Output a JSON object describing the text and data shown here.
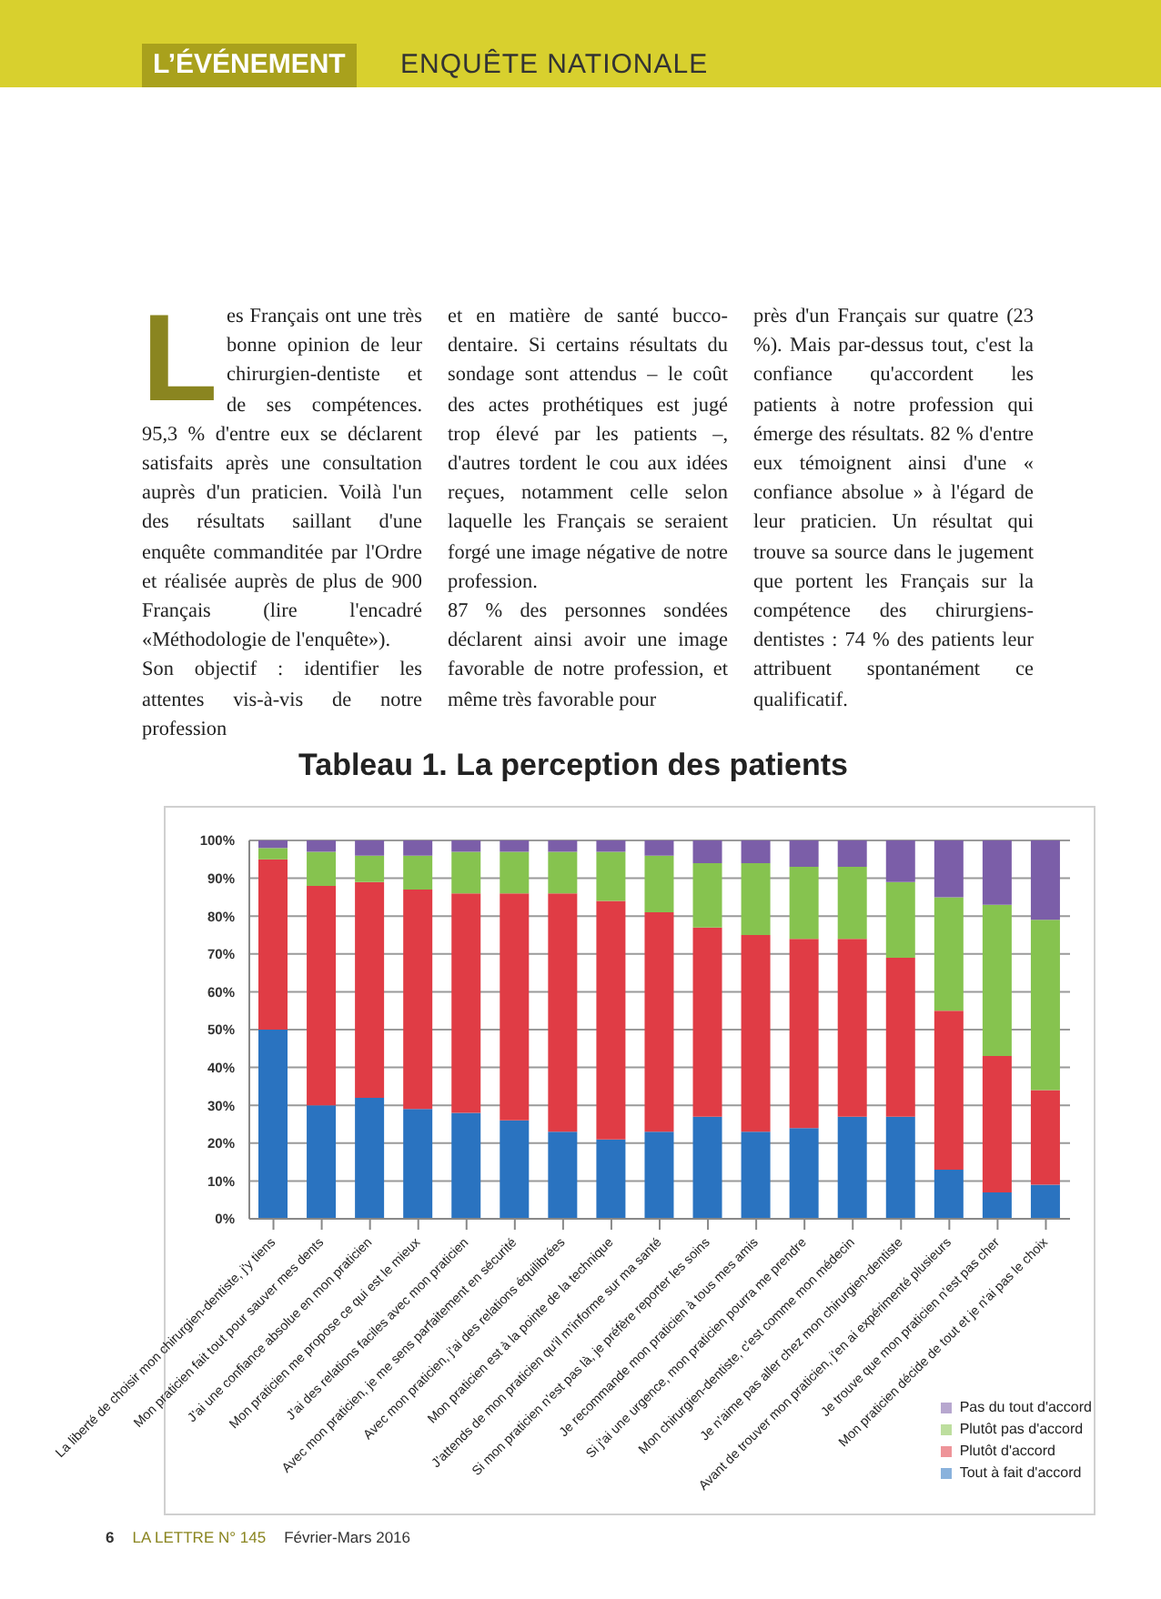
{
  "chart_data": {
    "type": "bar",
    "title": "Tableau 1. La perception des patients",
    "annotations": [
      "L’ÉVÉNEMENT",
      "ENQUÊTE NATIONALE",
      "Les Français ont une très bonne opinion de leur chirurgien-dentiste et de ses compétences. 95,3 % d'entre eux se déclarent satisfaits après une consultation auprès d'un praticien. Voilà l'un des résultats saillant d'une enquête commanditée par l'Ordre et réalisée auprès de plus de 900 Français (lire l'encadré «Méthodologie de l'enquête»).\nSon objectif : identifier les attentes vis-à-vis de notre profession",
      "et en matière de santé bucco-dentaire. Si certains résultats du sondage sont attendus – le coût des actes prothétiques est jugé trop élevé par les patients –, d'autres tordent le cou aux idées reçues, notamment celle selon laquelle les Français se seraient forgé une image négative de notre profession.\n87 % des personnes sondées déclarent ainsi avoir une image favorable de notre profession, et même très favorable pour",
      "près d'un Français sur quatre (23 %). Mais par-dessus tout, c'est la confiance qu'accordent les patients à notre profession qui émerge des résultats. 82 % d'entre eux témoignent ainsi d'une « confiance absolue » à l'égard de leur praticien. Un résultat qui trouve sa source dans le jugement que portent les Français sur la compétence des chirurgiens-dentistes : 74 % des patients leur attribuent spontanément ce qualificatif.",
      "6",
      "LA LETTRE N° 145",
      "Février-Mars 2016"
    ],
    "categories": [
      "La liberté de choisir mon chirurgien-dentiste, j'y tiens",
      "Mon praticien fait tout pour sauver mes dents",
      "J'ai une confiance absolue en mon praticien",
      "Mon praticien me propose ce qui est le mieux",
      "J'ai des relations faciles avec mon praticien",
      "Avec mon praticien, je me sens parfaitement en sécurité",
      "Avec mon praticien, j'ai des relations équilibrées",
      "Mon praticien est à la pointe de la technique",
      "J'attends de mon praticien qu'il m'informe sur ma santé",
      "Si mon praticien n'est pas là, je préfère reporter les soins",
      "Je recommande mon praticien à tous mes amis",
      "Si j'ai une urgence, mon praticien pourra me prendre",
      "Mon chirurgien-dentiste, c'est comme mon médecin",
      "Je n'aime pas aller chez mon chirurgien-dentiste",
      "Avant de trouver mon praticien, j'en ai expérimenté plusieurs",
      "Je trouve que mon praticien n'est pas cher",
      "Mon praticien décide de tout et je n'ai pas le choix"
    ],
    "series": [
      {
        "name": "Tout à fait d'accord",
        "color": "#2a73c0",
        "values": [
          50,
          30,
          32,
          29,
          28,
          26,
          23,
          21,
          23,
          27,
          23,
          24,
          27,
          27,
          13,
          7,
          9
        ]
      },
      {
        "name": "Plutôt d'accord",
        "color": "#e03c45",
        "values": [
          45,
          58,
          57,
          58,
          58,
          60,
          63,
          63,
          58,
          50,
          52,
          50,
          47,
          42,
          42,
          36,
          25
        ]
      },
      {
        "name": "Plutôt pas d'accord",
        "color": "#86c34f",
        "values": [
          3,
          9,
          7,
          9,
          11,
          11,
          11,
          13,
          15,
          17,
          19,
          19,
          19,
          20,
          30,
          40,
          45
        ]
      },
      {
        "name": "Pas du tout d'accord",
        "color": "#7b5ea8",
        "values": [
          2,
          3,
          4,
          4,
          3,
          3,
          3,
          3,
          4,
          6,
          6,
          7,
          7,
          11,
          15,
          17,
          21
        ]
      }
    ],
    "stacked": true,
    "ylim": [
      0,
      100
    ],
    "yticks": [
      {
        "value": 0,
        "label": "0%"
      },
      {
        "value": 10,
        "label": "10%"
      },
      {
        "value": 20,
        "label": "20%"
      },
      {
        "value": 30,
        "label": "30%"
      },
      {
        "value": 40,
        "label": "40%"
      },
      {
        "value": 50,
        "label": "50%"
      },
      {
        "value": 60,
        "label": "60%"
      },
      {
        "value": 70,
        "label": "70%"
      },
      {
        "value": 80,
        "label": "80%"
      },
      {
        "value": 90,
        "label": "90%"
      },
      {
        "value": 100,
        "label": "100%"
      }
    ],
    "grid": "y",
    "legend": "bottom right"
  }
}
